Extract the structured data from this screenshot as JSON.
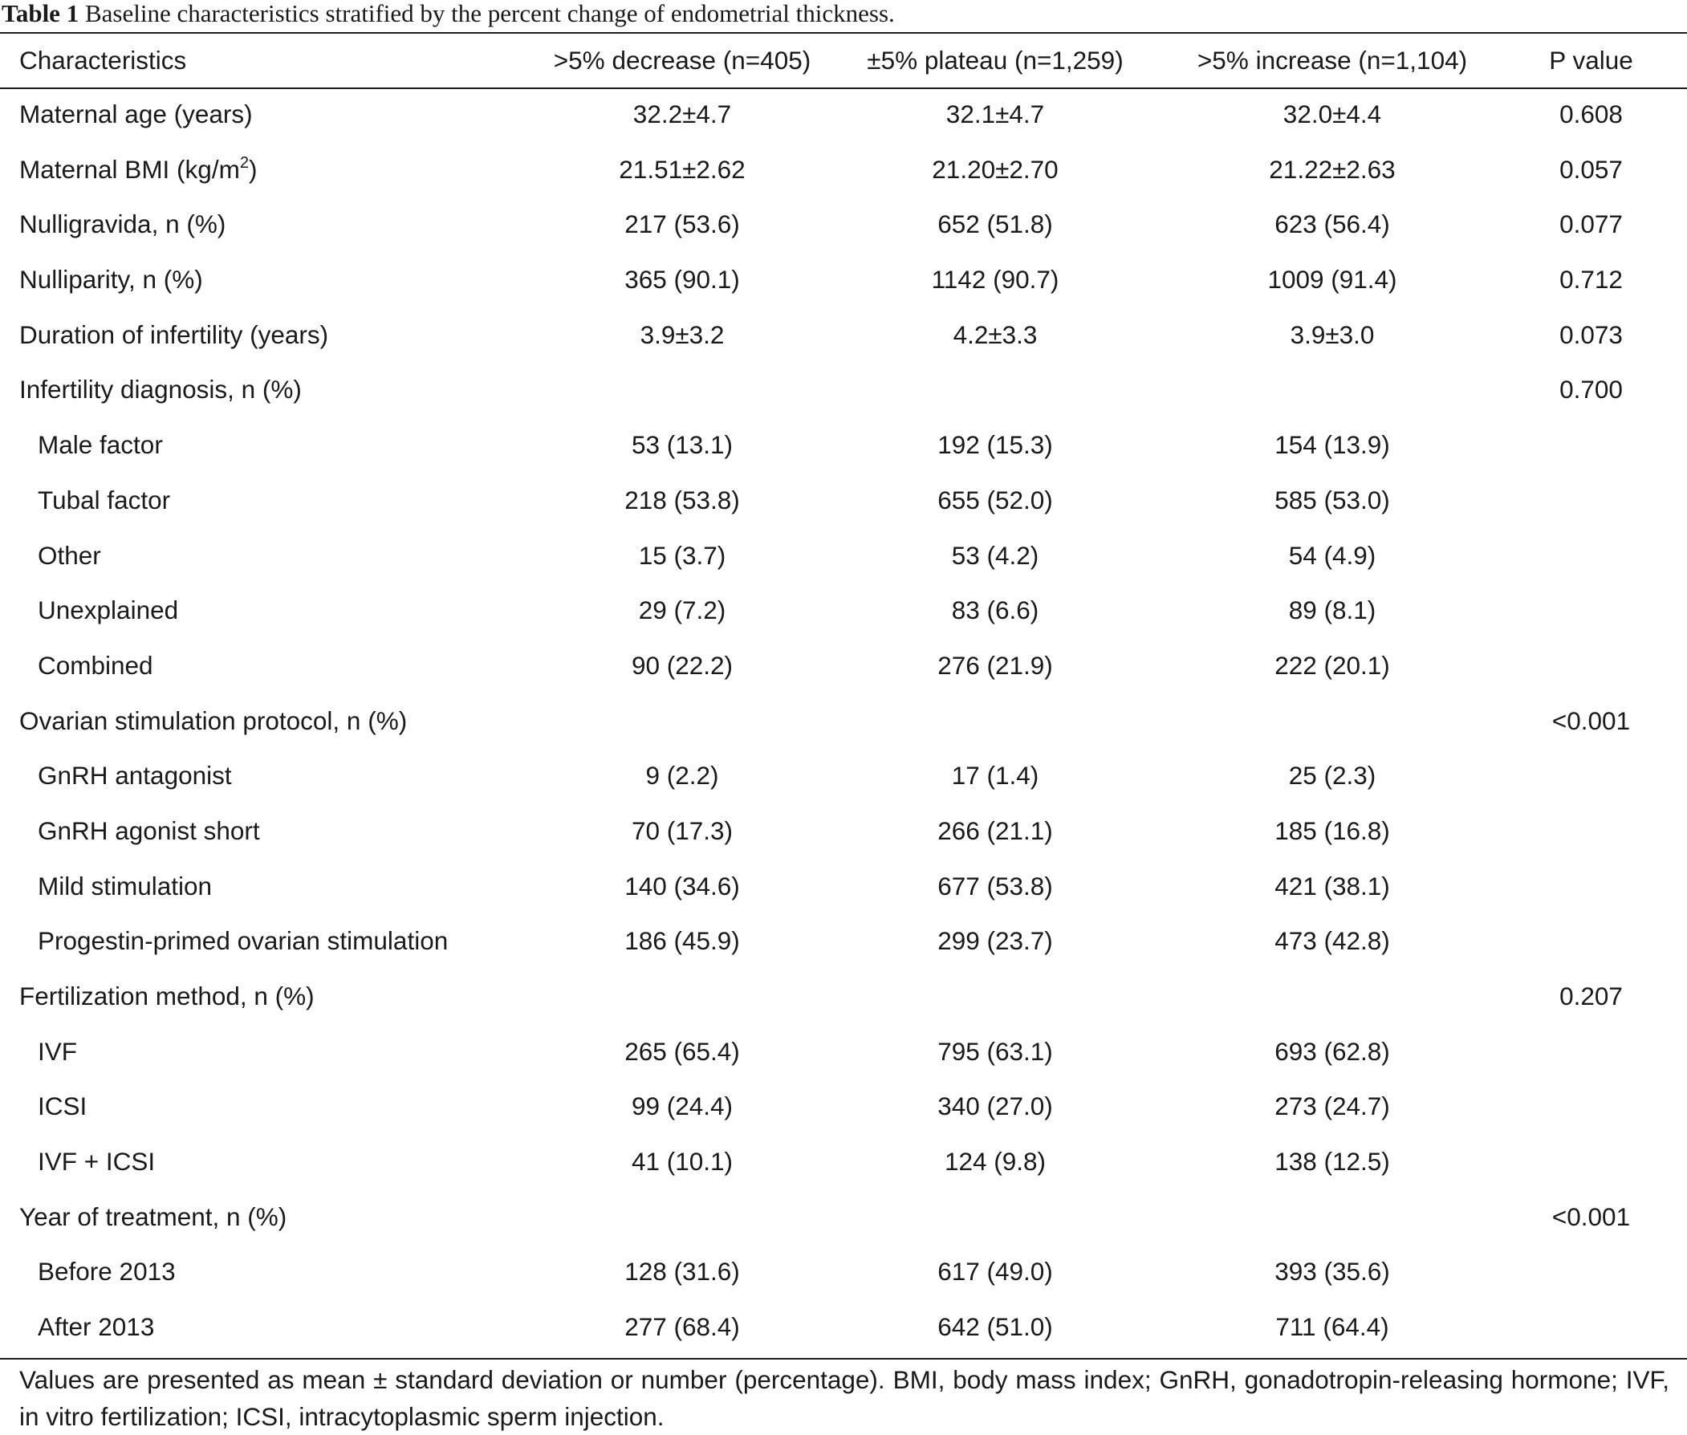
{
  "caption": {
    "label": "Table 1",
    "text": "Baseline characteristics stratified by the percent change of endometrial thickness."
  },
  "columns": [
    "Characteristics",
    ">5% decrease (n=405)",
    "±5% plateau (n=1,259)",
    ">5% increase (n=1,104)",
    "P value"
  ],
  "rows": [
    {
      "label": "Maternal age (years)",
      "indent": false,
      "values": [
        "32.2±4.7",
        "32.1±4.7",
        "32.0±4.4",
        "0.608"
      ]
    },
    {
      "label": "Maternal BMI (kg/m",
      "label_sup": "2",
      "label_tail": ")",
      "indent": false,
      "values": [
        "21.51±2.62",
        "21.20±2.70",
        "21.22±2.63",
        "0.057"
      ]
    },
    {
      "label": "Nulligravida, n (%)",
      "indent": false,
      "values": [
        "217 (53.6)",
        "652 (51.8)",
        "623 (56.4)",
        "0.077"
      ]
    },
    {
      "label": "Nulliparity, n (%)",
      "indent": false,
      "values": [
        "365 (90.1)",
        "1142 (90.7)",
        "1009 (91.4)",
        "0.712"
      ]
    },
    {
      "label": "Duration of infertility (years)",
      "indent": false,
      "values": [
        "3.9±3.2",
        "4.2±3.3",
        "3.9±3.0",
        "0.073"
      ]
    },
    {
      "label": "Infertility diagnosis, n (%)",
      "indent": false,
      "values": [
        "",
        "",
        "",
        "0.700"
      ]
    },
    {
      "label": "Male factor",
      "indent": true,
      "values": [
        "53 (13.1)",
        "192 (15.3)",
        "154 (13.9)",
        ""
      ]
    },
    {
      "label": "Tubal factor",
      "indent": true,
      "values": [
        "218 (53.8)",
        "655 (52.0)",
        "585 (53.0)",
        ""
      ]
    },
    {
      "label": "Other",
      "indent": true,
      "values": [
        "15 (3.7)",
        "53 (4.2)",
        "54 (4.9)",
        ""
      ]
    },
    {
      "label": "Unexplained",
      "indent": true,
      "values": [
        "29 (7.2)",
        "83 (6.6)",
        "89 (8.1)",
        ""
      ]
    },
    {
      "label": "Combined",
      "indent": true,
      "values": [
        "90 (22.2)",
        "276 (21.9)",
        "222 (20.1)",
        ""
      ]
    },
    {
      "label": "Ovarian stimulation protocol, n (%)",
      "indent": false,
      "values": [
        "",
        "",
        "",
        "<0.001"
      ]
    },
    {
      "label": "GnRH antagonist",
      "indent": true,
      "values": [
        "9 (2.2)",
        "17 (1.4)",
        "25 (2.3)",
        ""
      ]
    },
    {
      "label": "GnRH agonist short",
      "indent": true,
      "values": [
        "70 (17.3)",
        "266 (21.1)",
        "185 (16.8)",
        ""
      ]
    },
    {
      "label": "Mild stimulation",
      "indent": true,
      "values": [
        "140 (34.6)",
        "677 (53.8)",
        "421 (38.1)",
        ""
      ]
    },
    {
      "label": "Progestin-primed ovarian stimulation",
      "indent": true,
      "values": [
        "186 (45.9)",
        "299 (23.7)",
        "473 (42.8)",
        ""
      ]
    },
    {
      "label": "Fertilization method, n (%)",
      "indent": false,
      "values": [
        "",
        "",
        "",
        "0.207"
      ]
    },
    {
      "label": "IVF",
      "indent": true,
      "values": [
        "265 (65.4)",
        "795 (63.1)",
        "693 (62.8)",
        ""
      ]
    },
    {
      "label": "ICSI",
      "indent": true,
      "values": [
        "99 (24.4)",
        "340 (27.0)",
        "273 (24.7)",
        ""
      ]
    },
    {
      "label": "IVF + ICSI",
      "indent": true,
      "values": [
        "41 (10.1)",
        "124 (9.8)",
        "138 (12.5)",
        ""
      ]
    },
    {
      "label": "Year of treatment, n (%)",
      "indent": false,
      "values": [
        "",
        "",
        "",
        "<0.001"
      ]
    },
    {
      "label": "Before 2013",
      "indent": true,
      "values": [
        "128 (31.6)",
        "617 (49.0)",
        "393 (35.6)",
        ""
      ]
    },
    {
      "label": "After 2013",
      "indent": true,
      "values": [
        "277 (68.4)",
        "642 (51.0)",
        "711 (64.4)",
        ""
      ]
    }
  ],
  "footnote": "Values are presented as mean ± standard deviation or number (percentage). BMI, body mass index; GnRH, gonadotropin-releasing hormone; IVF, in vitro fertilization; ICSI, intracytoplasmic sperm injection."
}
